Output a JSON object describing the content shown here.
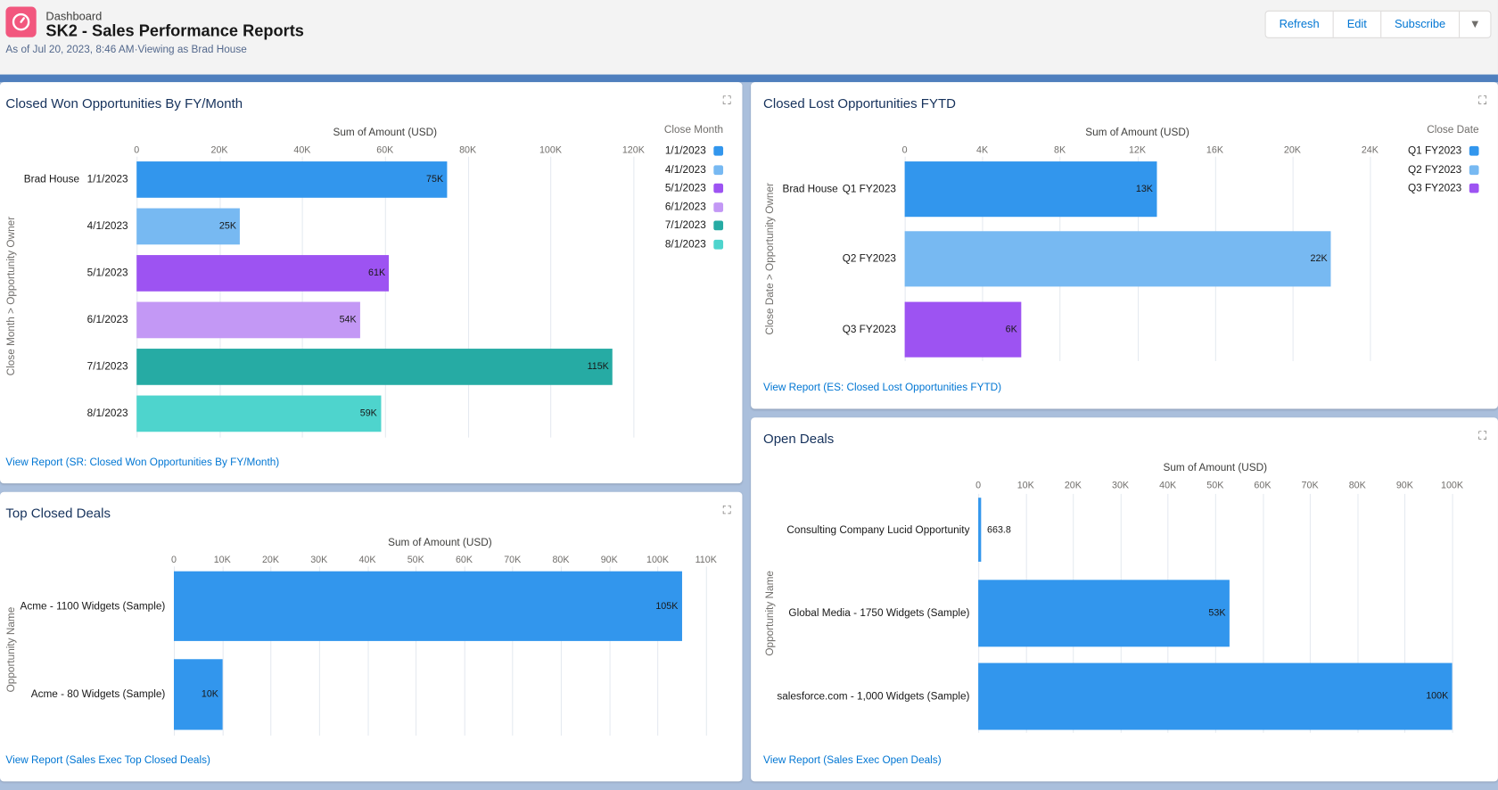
{
  "header": {
    "breadcrumb": "Dashboard",
    "title": "SK2 - Sales Performance Reports",
    "meta": "As of Jul 20, 2023, 8:46 AM·Viewing as Brad House",
    "buttons": [
      "Refresh",
      "Edit",
      "Subscribe"
    ],
    "icon": "dashboard-gauge-icon",
    "brand_color": "#f2577e"
  },
  "panels": [
    {
      "id": "closed-won",
      "title": "Closed Won Opportunities By FY/Month",
      "view_report": "View Report (SR: Closed Won Opportunities By FY/Month)",
      "chart_data": {
        "type": "bar",
        "orientation": "horizontal",
        "xlabel": "Sum of Amount (USD)",
        "ylabel": "Close Month > Opportunity Owner",
        "group_label": "Brad House",
        "xlim": [
          0,
          120000
        ],
        "ticks": [
          "0",
          "20K",
          "40K",
          "60K",
          "80K",
          "100K",
          "120K"
        ],
        "categories": [
          "1/1/2023",
          "4/1/2023",
          "5/1/2023",
          "6/1/2023",
          "7/1/2023",
          "8/1/2023"
        ],
        "values": [
          75000,
          25000,
          61000,
          54000,
          115000,
          59000
        ],
        "labels": [
          "75K",
          "25K",
          "61K",
          "54K",
          "115K",
          "59K"
        ],
        "colors": [
          "#3296ed",
          "#77b9f2",
          "#9d53f2",
          "#c398f5",
          "#26aba4",
          "#4ed4cd"
        ],
        "legend_title": "Close Month",
        "legend": [
          "1/1/2023",
          "4/1/2023",
          "5/1/2023",
          "6/1/2023",
          "7/1/2023",
          "8/1/2023"
        ],
        "legend_position": "right"
      }
    },
    {
      "id": "closed-lost",
      "title": "Closed Lost Opportunities FYTD",
      "view_report": "View Report (ES: Closed Lost Opportunities FYTD)",
      "chart_data": {
        "type": "bar",
        "orientation": "horizontal",
        "xlabel": "Sum of Amount (USD)",
        "ylabel": "Close Date > Opportunity Owner",
        "group_label": "Brad House",
        "xlim": [
          0,
          24000
        ],
        "ticks": [
          "0",
          "4K",
          "8K",
          "12K",
          "16K",
          "20K",
          "24K"
        ],
        "categories": [
          "Q1 FY2023",
          "Q2 FY2023",
          "Q3 FY2023"
        ],
        "values": [
          13000,
          22000,
          6000
        ],
        "labels": [
          "13K",
          "22K",
          "6K"
        ],
        "colors": [
          "#3296ed",
          "#77b9f2",
          "#9d53f2"
        ],
        "legend_title": "Close Date",
        "legend": [
          "Q1 FY2023",
          "Q2 FY2023",
          "Q3 FY2023"
        ],
        "legend_position": "right"
      }
    },
    {
      "id": "top-closed",
      "title": "Top Closed Deals",
      "view_report": "View Report (Sales Exec Top Closed Deals)",
      "chart_data": {
        "type": "bar",
        "orientation": "horizontal",
        "xlabel": "Sum of Amount (USD)",
        "ylabel": "Opportunity Name",
        "xlim": [
          0,
          110000
        ],
        "ticks": [
          "0",
          "10K",
          "20K",
          "30K",
          "40K",
          "50K",
          "60K",
          "70K",
          "80K",
          "90K",
          "100K",
          "110K"
        ],
        "categories": [
          "Acme - 1100 Widgets (Sample)",
          "Acme - 80 Widgets (Sample)"
        ],
        "values": [
          105000,
          10000
        ],
        "labels": [
          "105K",
          "10K"
        ],
        "colors": [
          "#3296ed",
          "#3296ed"
        ]
      }
    },
    {
      "id": "open-deals",
      "title": "Open Deals",
      "view_report": "View Report (Sales Exec Open Deals)",
      "chart_data": {
        "type": "bar",
        "orientation": "horizontal",
        "xlabel": "Sum of Amount (USD)",
        "ylabel": "Opportunity Name",
        "xlim": [
          0,
          100000
        ],
        "ticks": [
          "0",
          "10K",
          "20K",
          "30K",
          "40K",
          "50K",
          "60K",
          "70K",
          "80K",
          "90K",
          "100K"
        ],
        "categories": [
          "Consulting Company Lucid Opportunity",
          "Global Media - 1750 Widgets (Sample)",
          "salesforce.com - 1,000 Widgets (Sample)"
        ],
        "values": [
          663.8,
          53000,
          100000
        ],
        "labels": [
          "663.8",
          "53K",
          "100K"
        ],
        "colors": [
          "#3296ed",
          "#3296ed",
          "#3296ed"
        ]
      }
    }
  ]
}
